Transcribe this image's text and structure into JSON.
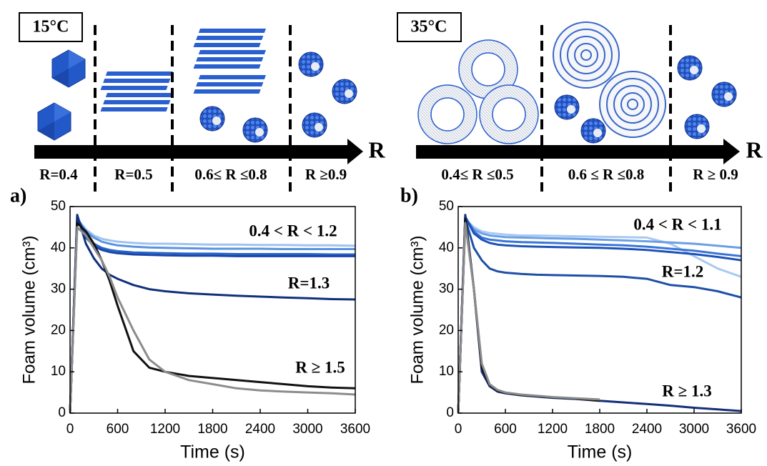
{
  "schematics": [
    {
      "temperature": "15°C",
      "axis": "R",
      "labels": [
        "R=0.4",
        "R=0.5",
        "0.6≤ R ≤0.8",
        "R ≥0.9"
      ]
    },
    {
      "temperature": "35°C",
      "axis": "R",
      "labels": [
        "0.4≤ R ≤0.5",
        "0.6 ≤ R ≤0.8",
        "R ≥ 0.9"
      ]
    }
  ],
  "chart_data": [
    {
      "type": "line",
      "panel": "a)",
      "xlabel": "Time (s)",
      "ylabel": "Foam volume (cm³)",
      "x": [
        0,
        90,
        200,
        300,
        400,
        500,
        600,
        800,
        1000,
        1200,
        1500,
        1800,
        2100,
        2400,
        2700,
        3000,
        3300,
        3600
      ],
      "xlim": [
        0,
        3600
      ],
      "xticks": [
        0,
        600,
        1200,
        1800,
        2400,
        3000,
        3600
      ],
      "ylim": [
        0,
        50
      ],
      "yticks": [
        0,
        10,
        20,
        30,
        40,
        50
      ],
      "series": [
        {
          "color": "#9fc3f0",
          "values": [
            0,
            47,
            44.5,
            43,
            42.2,
            41.8,
            41.5,
            41.2,
            41,
            41,
            40.9,
            40.8,
            40.8,
            40.7,
            40.7,
            40.6,
            40.6,
            40.5
          ]
        },
        {
          "color": "#5a93e0",
          "values": [
            0,
            47,
            44,
            42.5,
            41.5,
            41,
            40.6,
            40.3,
            40.1,
            40,
            39.9,
            39.8,
            39.8,
            39.8,
            39.7,
            39.7,
            39.7,
            39.7
          ]
        },
        {
          "color": "#2563c9",
          "values": [
            0,
            47.5,
            43,
            41,
            40,
            39.5,
            39.2,
            38.9,
            38.8,
            38.7,
            38.6,
            38.6,
            38.5,
            38.5,
            38.5,
            38.5,
            38.4,
            38.4
          ]
        },
        {
          "color": "#1a46a8",
          "values": [
            0,
            47.5,
            42.5,
            40.5,
            39.5,
            39,
            38.7,
            38.4,
            38.3,
            38.2,
            38.1,
            38.1,
            38,
            38,
            38,
            38,
            38,
            38
          ]
        },
        {
          "color": "#10307a",
          "values": [
            0,
            48,
            41,
            37.5,
            35,
            33.5,
            32.5,
            31,
            30,
            29.5,
            29,
            28.7,
            28.4,
            28.2,
            28,
            27.8,
            27.6,
            27.5
          ]
        },
        {
          "color": "#111111",
          "values": [
            0,
            46,
            44,
            41,
            37,
            32,
            26,
            15,
            11,
            10,
            9,
            8.5,
            8,
            7.5,
            7,
            6.5,
            6.2,
            6
          ]
        },
        {
          "color": "#8c8c8c",
          "values": [
            0,
            45,
            43,
            40,
            37,
            33,
            28,
            20,
            13,
            10,
            8,
            7,
            6,
            5.5,
            5.2,
            5,
            4.8,
            4.5
          ]
        }
      ],
      "annotations": [
        "0.4 < R < 1.2",
        "R=1.3",
        "R ≥ 1.5"
      ]
    },
    {
      "type": "line",
      "panel": "b)",
      "xlabel": "Time (s)",
      "ylabel": "Foam volume (cm³)",
      "x": [
        0,
        90,
        200,
        300,
        400,
        500,
        600,
        800,
        1000,
        1200,
        1500,
        1800,
        2100,
        2400,
        2700,
        3000,
        3300,
        3600
      ],
      "xlim": [
        0,
        3600
      ],
      "xticks": [
        0,
        600,
        1200,
        1800,
        2400,
        3000,
        3600
      ],
      "ylim": [
        0,
        50
      ],
      "yticks": [
        0,
        10,
        20,
        30,
        40,
        50
      ],
      "series": [
        {
          "color": "#a9c9f2",
          "values": [
            0,
            47,
            45,
            44,
            43.6,
            43.4,
            43.2,
            43,
            43,
            42.9,
            42.8,
            42.7,
            42.6,
            42.5,
            41,
            38,
            35,
            33
          ]
        },
        {
          "color": "#6b9fe4",
          "values": [
            0,
            47,
            44.5,
            43.5,
            43,
            42.8,
            42.6,
            42.5,
            42.4,
            42.3,
            42.2,
            42,
            41.8,
            41.6,
            41.3,
            41,
            40.5,
            40
          ]
        },
        {
          "color": "#3a75d6",
          "values": [
            0,
            47.5,
            44,
            42.5,
            42,
            41.8,
            41.6,
            41.4,
            41.3,
            41.2,
            41,
            40.8,
            40.6,
            40.3,
            39.8,
            39.3,
            38.6,
            38
          ]
        },
        {
          "color": "#1e52b8",
          "values": [
            0,
            47.5,
            43.5,
            42,
            41.2,
            40.8,
            40.6,
            40.4,
            40.3,
            40.2,
            40.1,
            40,
            39.8,
            39.5,
            39,
            38.5,
            37.8,
            37
          ]
        },
        {
          "color": "#1f4fa6",
          "values": [
            0,
            47,
            40,
            37,
            35,
            34.3,
            34,
            33.7,
            33.5,
            33.4,
            33.3,
            33.2,
            33,
            32.5,
            31,
            30.5,
            29.5,
            28
          ]
        },
        {
          "color": "#142f7a",
          "values": [
            0,
            48,
            30,
            10,
            6.5,
            5.2,
            4.8,
            4.3,
            4,
            3.7,
            3.4,
            3,
            2.6,
            2.2,
            1.8,
            1.3,
            0.9,
            0.5
          ]
        },
        {
          "color": "#111111",
          "values": [
            0,
            47,
            30,
            11,
            6.8,
            5.4,
            4.9,
            4.4,
            4.1,
            3.8,
            3.5,
            3,
            null,
            null,
            null,
            null,
            null,
            null
          ]
        },
        {
          "color": "#8c8c8c",
          "values": [
            0,
            46,
            30,
            12,
            7,
            5.6,
            5,
            4.5,
            4.2,
            3.9,
            3.6,
            3.3,
            null,
            null,
            null,
            null,
            null,
            null
          ]
        }
      ],
      "annotations": [
        "0.4 < R < 1.1",
        "R=1.2",
        "R ≥ 1.3"
      ]
    }
  ]
}
